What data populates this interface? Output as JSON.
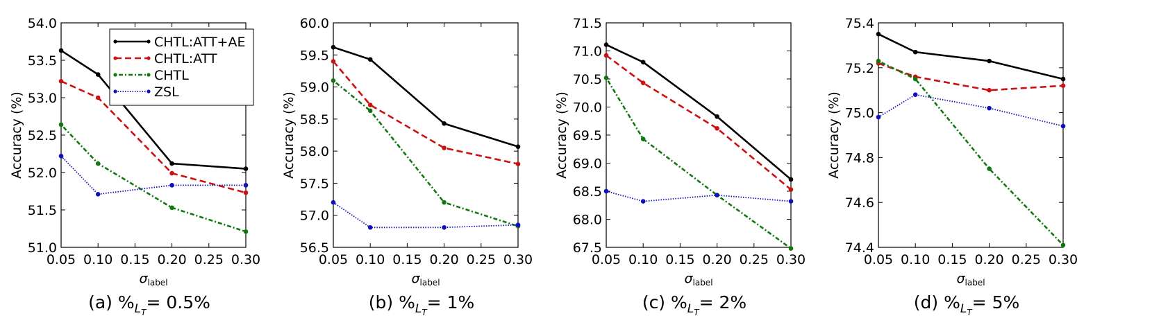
{
  "figure": {
    "xlabel_main": "σ",
    "xlabel_sub": "label",
    "ylabel": "Accuracy (%)"
  },
  "legend": {
    "entries": [
      "CHTL:ATT+AE",
      "CHTL:ATT",
      "CHTL",
      "ZSL"
    ],
    "position": "top-right (subplot a)"
  },
  "chart_data": [
    {
      "type": "line",
      "id": "a",
      "caption": "(a) %",
      "caption_sub": "L",
      "caption_subsub": "T",
      "caption_value": "= 0.5%",
      "x": [
        0.05,
        0.1,
        0.2,
        0.3
      ],
      "xlim": [
        0.05,
        0.3
      ],
      "xticks": [
        "0.05",
        "0.10",
        "0.15",
        "0.20",
        "0.25",
        "0.30"
      ],
      "ylim": [
        51.0,
        54.0
      ],
      "yticks": [
        "51.0",
        "51.5",
        "52.0",
        "52.5",
        "53.0",
        "53.5",
        "54.0"
      ],
      "xlabel": "σlabel",
      "ylabel": "Accuracy (%)",
      "series": [
        {
          "name": "CHTL:ATT+AE",
          "values": [
            53.63,
            53.31,
            52.12,
            52.05
          ]
        },
        {
          "name": "CHTL:ATT",
          "values": [
            53.22,
            53.0,
            51.99,
            51.73
          ]
        },
        {
          "name": "CHTL",
          "values": [
            52.64,
            52.12,
            51.53,
            51.21
          ]
        },
        {
          "name": "ZSL",
          "values": [
            52.22,
            51.71,
            51.83,
            51.83
          ]
        }
      ]
    },
    {
      "type": "line",
      "id": "b",
      "caption": "(b) %",
      "caption_sub": "L",
      "caption_subsub": "T",
      "caption_value": "= 1%",
      "x": [
        0.05,
        0.1,
        0.2,
        0.3
      ],
      "xlim": [
        0.05,
        0.3
      ],
      "xticks": [
        "0.05",
        "0.10",
        "0.15",
        "0.20",
        "0.25",
        "0.30"
      ],
      "ylim": [
        56.5,
        60.0
      ],
      "yticks": [
        "56.5",
        "57.0",
        "57.5",
        "58.0",
        "58.5",
        "59.0",
        "59.5",
        "60.0"
      ],
      "xlabel": "σlabel",
      "ylabel": "Accuracy (%)",
      "series": [
        {
          "name": "CHTL:ATT+AE",
          "values": [
            59.62,
            59.43,
            58.43,
            58.07
          ]
        },
        {
          "name": "CHTL:ATT",
          "values": [
            59.4,
            58.72,
            58.05,
            57.8
          ]
        },
        {
          "name": "CHTL",
          "values": [
            59.1,
            58.63,
            57.2,
            56.83
          ]
        },
        {
          "name": "ZSL",
          "values": [
            57.2,
            56.81,
            56.81,
            56.85
          ]
        }
      ]
    },
    {
      "type": "line",
      "id": "c",
      "caption": "(c) %",
      "caption_sub": "L",
      "caption_subsub": "T",
      "caption_value": "= 2%",
      "x": [
        0.05,
        0.1,
        0.2,
        0.3
      ],
      "xlim": [
        0.05,
        0.3
      ],
      "xticks": [
        "0.05",
        "0.10",
        "0.15",
        "0.20",
        "0.25",
        "0.30"
      ],
      "ylim": [
        67.5,
        71.5
      ],
      "yticks": [
        "67.5",
        "68.0",
        "68.5",
        "69.0",
        "69.5",
        "70.0",
        "70.5",
        "71.0",
        "71.5"
      ],
      "xlabel": "σlabel",
      "ylabel": "Accuracy (%)",
      "series": [
        {
          "name": "CHTL:ATT+AE",
          "values": [
            71.11,
            70.8,
            69.83,
            68.71
          ]
        },
        {
          "name": "CHTL:ATT",
          "values": [
            70.92,
            70.43,
            69.62,
            68.53
          ]
        },
        {
          "name": "CHTL",
          "values": [
            70.52,
            69.43,
            68.43,
            67.48
          ]
        },
        {
          "name": "ZSL",
          "values": [
            68.5,
            68.32,
            68.43,
            68.32
          ]
        }
      ]
    },
    {
      "type": "line",
      "id": "d",
      "caption": "(d) %",
      "caption_sub": "L",
      "caption_subsub": "T",
      "caption_value": "= 5%",
      "x": [
        0.05,
        0.1,
        0.2,
        0.3
      ],
      "xlim": [
        0.05,
        0.3
      ],
      "xticks": [
        "0.05",
        "0.10",
        "0.15",
        "0.20",
        "0.25",
        "0.30"
      ],
      "ylim": [
        74.4,
        75.4
      ],
      "yticks": [
        "74.4",
        "74.6",
        "74.8",
        "75.0",
        "75.2",
        "75.4"
      ],
      "xlabel": "σlabel",
      "ylabel": "Accuracy (%)",
      "series": [
        {
          "name": "CHTL:ATT+AE",
          "values": [
            75.35,
            75.27,
            75.23,
            75.15
          ]
        },
        {
          "name": "CHTL:ATT",
          "values": [
            75.22,
            75.16,
            75.1,
            75.12
          ]
        },
        {
          "name": "CHTL",
          "values": [
            75.23,
            75.15,
            74.75,
            74.41
          ]
        },
        {
          "name": "ZSL",
          "values": [
            74.98,
            75.08,
            75.02,
            74.94
          ]
        }
      ]
    }
  ],
  "colors": {
    "CHTL:ATT+AE": "#000000",
    "CHTL:ATT": "#cc1111",
    "CHTL": "#117711",
    "ZSL": "#1111bb"
  }
}
